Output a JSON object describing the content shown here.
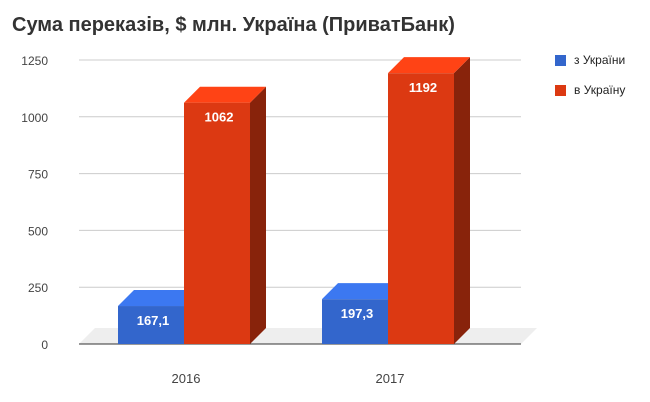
{
  "chart_data": {
    "type": "bar",
    "title": "Сума переказів, $ млн. Україна (ПриватБанк)",
    "categories": [
      "2016",
      "2017"
    ],
    "series": [
      {
        "name": "з України",
        "color": "#3366cc",
        "values": [
          167.1,
          197.3
        ],
        "labels": [
          "167,1",
          "197,3"
        ]
      },
      {
        "name": "в Україну",
        "color": "#dc3912",
        "values": [
          1062,
          1192
        ],
        "labels": [
          "1062",
          "1192"
        ]
      }
    ],
    "ylim": [
      0,
      1250
    ],
    "yticks": [
      0,
      250,
      500,
      750,
      1000,
      1250
    ],
    "grid": true,
    "legend": "right",
    "style": "3d"
  }
}
